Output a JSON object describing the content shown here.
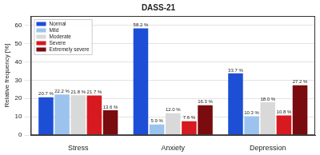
{
  "chart_data": {
    "type": "bar",
    "title": "DASS-21",
    "y_label": "Relative frequency [%]",
    "categories": [
      "Stress",
      "Anxiety",
      "Depression"
    ],
    "series": [
      {
        "name": "Normal",
        "color": "#1c4fd6",
        "values": [
          20.7,
          58.2,
          33.7
        ],
        "value_labels": [
          "20.7 %",
          "58.2 %",
          "33.7 %"
        ]
      },
      {
        "name": "Mild",
        "color": "#9cc3ee",
        "values": [
          22.2,
          5.9,
          10.3
        ],
        "value_labels": [
          "22.2 %",
          "5.9 %",
          "10.3 %"
        ]
      },
      {
        "name": "Moderate",
        "color": "#d9d9d9",
        "values": [
          21.8,
          12.0,
          18.0
        ],
        "value_labels": [
          "21.8 %",
          "12.0 %",
          "18.0 %"
        ]
      },
      {
        "name": "Severe",
        "color": "#d71a1f",
        "values": [
          21.7,
          7.6,
          10.8
        ],
        "value_labels": [
          "21.7 %",
          "7.6 %",
          "10.8 %"
        ]
      },
      {
        "name": "Extremely severe",
        "color": "#7a0b0e",
        "values": [
          13.6,
          16.3,
          27.2
        ],
        "value_labels": [
          "13.6 %",
          "16.3 %",
          "27.2 %"
        ]
      }
    ],
    "ylim": [
      0,
      65
    ],
    "yticks": [
      0,
      10,
      20,
      30,
      40,
      50,
      60
    ],
    "grid": true,
    "legend": "upper left",
    "data_labels": true
  }
}
